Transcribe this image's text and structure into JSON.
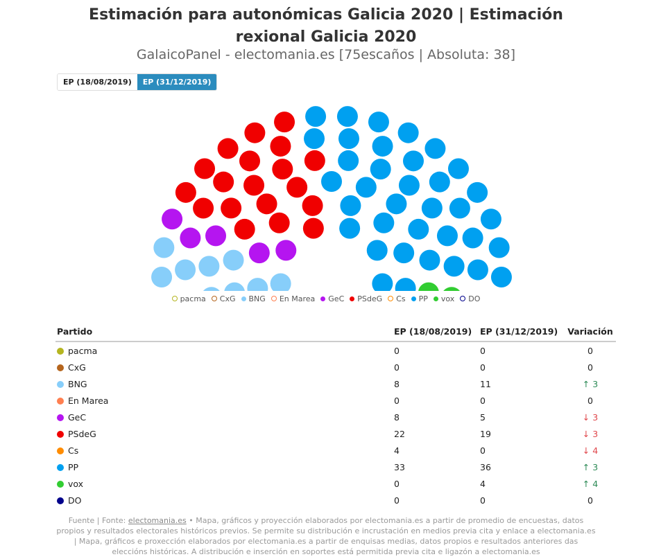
{
  "title": "Estimación para autonómicas Galicia 2020 | Estimación rexional Galicia 2020",
  "subtitle": "GalaicoPanel - electomania.es [75escaños | Absoluta: 38]",
  "tabs": [
    {
      "label": "EP (18/08/2019)",
      "active": false
    },
    {
      "label": "EP (31/12/2019)",
      "active": true
    }
  ],
  "chart_data": {
    "type": "parliament",
    "total_seats": 75,
    "majority": 38,
    "parties": [
      {
        "name": "pacma",
        "color": "#b5b520",
        "seats": 0
      },
      {
        "name": "CxG",
        "color": "#b5651d",
        "seats": 0
      },
      {
        "name": "BNG",
        "color": "#87cefa",
        "seats": 11
      },
      {
        "name": "En Marea",
        "color": "#ff7f50",
        "seats": 0
      },
      {
        "name": "GeC",
        "color": "#b515f0",
        "seats": 5
      },
      {
        "name": "PSdeG",
        "color": "#f00000",
        "seats": 19
      },
      {
        "name": "Cs",
        "color": "#ff8c00",
        "seats": 0
      },
      {
        "name": "PP",
        "color": "#00a0f0",
        "seats": 36
      },
      {
        "name": "vox",
        "color": "#32cd32",
        "seats": 4
      },
      {
        "name": "DO",
        "color": "#00008b",
        "seats": 0
      }
    ]
  },
  "table": {
    "headers": [
      "Partido",
      "EP (18/08/2019)",
      "EP (31/12/2019)",
      "Variación"
    ],
    "rows": [
      {
        "party": "pacma",
        "a": "0",
        "b": "0",
        "var": "0",
        "dir": ""
      },
      {
        "party": "CxG",
        "a": "0",
        "b": "0",
        "var": "0",
        "dir": ""
      },
      {
        "party": "BNG",
        "a": "8",
        "b": "11",
        "var": "3",
        "dir": "up"
      },
      {
        "party": "En Marea",
        "a": "0",
        "b": "0",
        "var": "0",
        "dir": ""
      },
      {
        "party": "GeC",
        "a": "8",
        "b": "5",
        "var": "3",
        "dir": "down"
      },
      {
        "party": "PSdeG",
        "a": "22",
        "b": "19",
        "var": "3",
        "dir": "down"
      },
      {
        "party": "Cs",
        "a": "4",
        "b": "0",
        "var": "4",
        "dir": "down"
      },
      {
        "party": "PP",
        "a": "33",
        "b": "36",
        "var": "3",
        "dir": "up"
      },
      {
        "party": "vox",
        "a": "0",
        "b": "4",
        "var": "4",
        "dir": "up"
      },
      {
        "party": "DO",
        "a": "0",
        "b": "0",
        "var": "0",
        "dir": ""
      }
    ]
  },
  "footer": {
    "prefix": "Fuente | Fonte: ",
    "link": "electomania.es",
    "text": " • Mapa, gráficos y proyección elaborados por electomania.es a partir de promedio de encuestas, datos propios y resultados electorales históricos previos. Se permite su distribución e incrustación en medios previa cita y enlace a electomania.es | Mapa, gráficos e proxección elaborados por electomania.es a partir de enquisas medias, datos propios e resultados anteriores das eleccións históricas. A distribución e inserción en soportes está permitida previa cita e ligazón a electomania.es"
  }
}
